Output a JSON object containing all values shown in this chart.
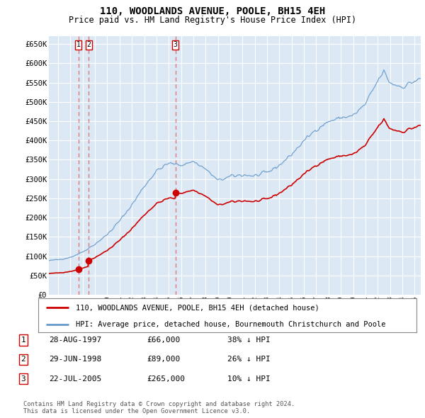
{
  "title": "110, WOODLANDS AVENUE, POOLE, BH15 4EH",
  "subtitle": "Price paid vs. HM Land Registry's House Price Index (HPI)",
  "ylabel_ticks": [
    "£0",
    "£50K",
    "£100K",
    "£150K",
    "£200K",
    "£250K",
    "£300K",
    "£350K",
    "£400K",
    "£450K",
    "£500K",
    "£550K",
    "£600K",
    "£650K"
  ],
  "ytick_values": [
    0,
    50000,
    100000,
    150000,
    200000,
    250000,
    300000,
    350000,
    400000,
    450000,
    500000,
    550000,
    600000,
    650000
  ],
  "ylim": [
    0,
    670000
  ],
  "xlim_start": 1995.25,
  "xlim_end": 2025.5,
  "sale_year_floats": [
    1997.65,
    1998.49,
    2005.55
  ],
  "sale_prices": [
    66000,
    89000,
    265000
  ],
  "sale_labels": [
    "1",
    "2",
    "3"
  ],
  "legend_property_label": "110, WOODLANDS AVENUE, POOLE, BH15 4EH (detached house)",
  "legend_hpi_label": "HPI: Average price, detached house, Bournemouth Christchurch and Poole",
  "table_rows": [
    {
      "label": "1",
      "date": "28-AUG-1997",
      "price": "£66,000",
      "hpi": "38% ↓ HPI"
    },
    {
      "label": "2",
      "date": "29-JUN-1998",
      "price": "£89,000",
      "hpi": "26% ↓ HPI"
    },
    {
      "label": "3",
      "date": "22-JUL-2005",
      "price": "£265,000",
      "hpi": "10% ↓ HPI"
    }
  ],
  "footer": "Contains HM Land Registry data © Crown copyright and database right 2024.\nThis data is licensed under the Open Government Licence v3.0.",
  "property_line_color": "#cc0000",
  "hpi_line_color": "#6699cc",
  "sale_dot_color": "#cc0000",
  "dashed_line_color": "#dd6666",
  "plot_bg_color": "#dce9f5",
  "grid_color": "#c8d8e8",
  "box_color": "#cc0000",
  "white_grid_color": "#ffffff"
}
